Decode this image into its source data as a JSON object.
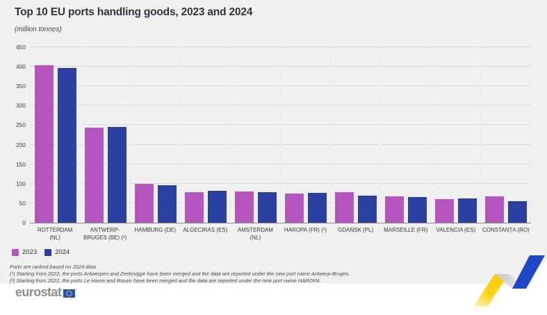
{
  "title": "Top 10 EU ports handling goods, 2023 and 2024",
  "subtitle": "(million tonnes)",
  "chart_data": {
    "type": "bar",
    "unit": "million tonnes",
    "categories": [
      "ROTTERDAM\n(NL)",
      "ANTWERP-\nBRUGES (BE) (¹)",
      "HAMBURG (DE)",
      "ALGECIRAS (ES)",
      "AMSTERDAM\n(NL)",
      "HAROPA (FR) (²)",
      "GDAŃSK (PL)",
      "MARSEILLE (FR)",
      "VALENCIA (ES)",
      "CONSTANȚA (RO)"
    ],
    "series": [
      {
        "name": "2023",
        "color": "#b456bd",
        "values": [
          403,
          244,
          100,
          78,
          80,
          75,
          79,
          67,
          60,
          67
        ]
      },
      {
        "name": "2024",
        "color": "#2b3fa0",
        "values": [
          397,
          246,
          96,
          82,
          78,
          76,
          70,
          66,
          63,
          56
        ]
      }
    ],
    "ylim": [
      0,
      450
    ],
    "ytick_step": 50,
    "grid": "horizontal-dotted",
    "legend_position": "bottom-left"
  },
  "footnotes": [
    "Ports are ranked based on 2024 data.",
    "(¹) Starting from 2022, the ports Antwerpen and Zeebrugge have been merged and the data are reported under the new port name Antwerp-Bruges.",
    "(²) Starting from 2022, the ports Le Havre and Rouen have been merged and the data are reported under the new port name HAROPA."
  ],
  "footer": {
    "logo_text": "eurostat"
  },
  "colors": {
    "series_2023": "#b456bd",
    "series_2024": "#2b3fa0",
    "panel_bg": "#f0f0f1",
    "axis_line": "#8c8c8c",
    "accent_yellow": "#ffd617",
    "accent_blue": "#1f48c8",
    "eu_flag_blue": "#2150c0"
  }
}
